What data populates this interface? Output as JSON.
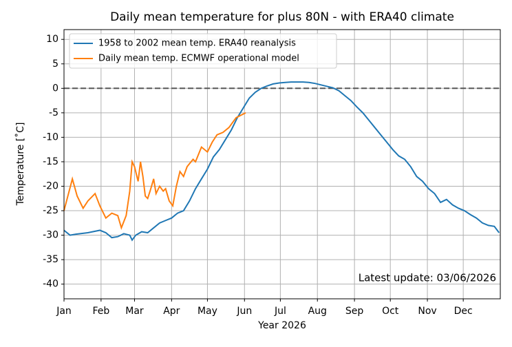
{
  "chart_data": {
    "type": "line",
    "title": "Daily mean temperature for plus 80N - with ERA40 climate",
    "x_label": "Year 2026",
    "y_label": "Temperature [˚C]",
    "annotation": "Latest update: 03/06/2026",
    "reference_line": 0,
    "grid": true,
    "legend": "upper left",
    "xlim": [
      0,
      365
    ],
    "ylim": [
      -43,
      12
    ],
    "xticks": [
      {
        "value": 0,
        "label": "Jan"
      },
      {
        "value": 31,
        "label": "Feb"
      },
      {
        "value": 59,
        "label": "Mar"
      },
      {
        "value": 90,
        "label": "Apr"
      },
      {
        "value": 120,
        "label": "May"
      },
      {
        "value": 151,
        "label": "Jun"
      },
      {
        "value": 181,
        "label": "Jul"
      },
      {
        "value": 212,
        "label": "Aug"
      },
      {
        "value": 243,
        "label": "Sep"
      },
      {
        "value": 273,
        "label": "Oct"
      },
      {
        "value": 304,
        "label": "Nov"
      },
      {
        "value": 334,
        "label": "Dec"
      }
    ],
    "yticks": [
      -40,
      -35,
      -30,
      -25,
      -20,
      -15,
      -10,
      -5,
      0,
      5,
      10
    ],
    "series": [
      {
        "name": "1958 to 2002 mean temp. ERA40 reanalysis",
        "color": "#1f77b4",
        "x": [
          0,
          5,
          10,
          20,
          30,
          35,
          40,
          45,
          50,
          55,
          57,
          60,
          65,
          70,
          75,
          80,
          85,
          90,
          95,
          100,
          105,
          110,
          115,
          120,
          125,
          130,
          135,
          140,
          145,
          150,
          155,
          160,
          165,
          170,
          175,
          180,
          185,
          190,
          195,
          200,
          205,
          210,
          215,
          220,
          225,
          230,
          235,
          240,
          245,
          250,
          255,
          260,
          265,
          270,
          275,
          280,
          285,
          290,
          295,
          300,
          305,
          310,
          315,
          320,
          325,
          330,
          335,
          340,
          345,
          350,
          355,
          360,
          364
        ],
        "values": [
          -29,
          -30,
          -29.8,
          -29.5,
          -29,
          -29.5,
          -30.5,
          -30.3,
          -29.7,
          -30,
          -31,
          -30,
          -29.3,
          -29.5,
          -28.5,
          -27.5,
          -27,
          -26.5,
          -25.5,
          -25,
          -23,
          -20.5,
          -18.5,
          -16.5,
          -14,
          -12.5,
          -10.5,
          -8.5,
          -6,
          -4,
          -2,
          -0.8,
          0,
          0.5,
          0.9,
          1.1,
          1.2,
          1.3,
          1.3,
          1.3,
          1.2,
          1,
          0.7,
          0.4,
          0.1,
          -0.5,
          -1.5,
          -2.5,
          -3.8,
          -5,
          -6.5,
          -8,
          -9.5,
          -11,
          -12.5,
          -13.8,
          -14.5,
          -16,
          -18,
          -19,
          -20.5,
          -21.5,
          -23.3,
          -22.7,
          -23.8,
          -24.5,
          -25,
          -25.8,
          -26.5,
          -27.5,
          -28,
          -28.2,
          -29.5
        ]
      },
      {
        "name": "Daily mean temp. ECMWF operational model",
        "color": "#ff7f0e",
        "x": [
          0,
          7,
          11,
          16,
          20,
          26,
          30,
          35,
          40,
          45,
          48,
          52,
          55,
          57,
          59,
          62,
          64,
          66,
          68,
          70,
          72,
          75,
          77,
          80,
          83,
          85,
          88,
          91,
          94,
          97,
          100,
          103,
          108,
          110,
          115,
          120,
          124,
          128,
          133,
          138,
          144,
          148,
          152
        ],
        "values": [
          -25,
          -18.5,
          -22,
          -24.5,
          -23,
          -21.5,
          -24,
          -26.5,
          -25.5,
          -26,
          -28.5,
          -26,
          -21,
          -15,
          -16,
          -19,
          -15,
          -18,
          -22,
          -22.5,
          -21,
          -18.5,
          -21.5,
          -20,
          -21,
          -20.5,
          -23,
          -24,
          -20,
          -17,
          -18,
          -16,
          -14.5,
          -15,
          -12,
          -13,
          -11,
          -9.5,
          -9,
          -8,
          -6,
          -5.5,
          -5
        ]
      }
    ]
  }
}
